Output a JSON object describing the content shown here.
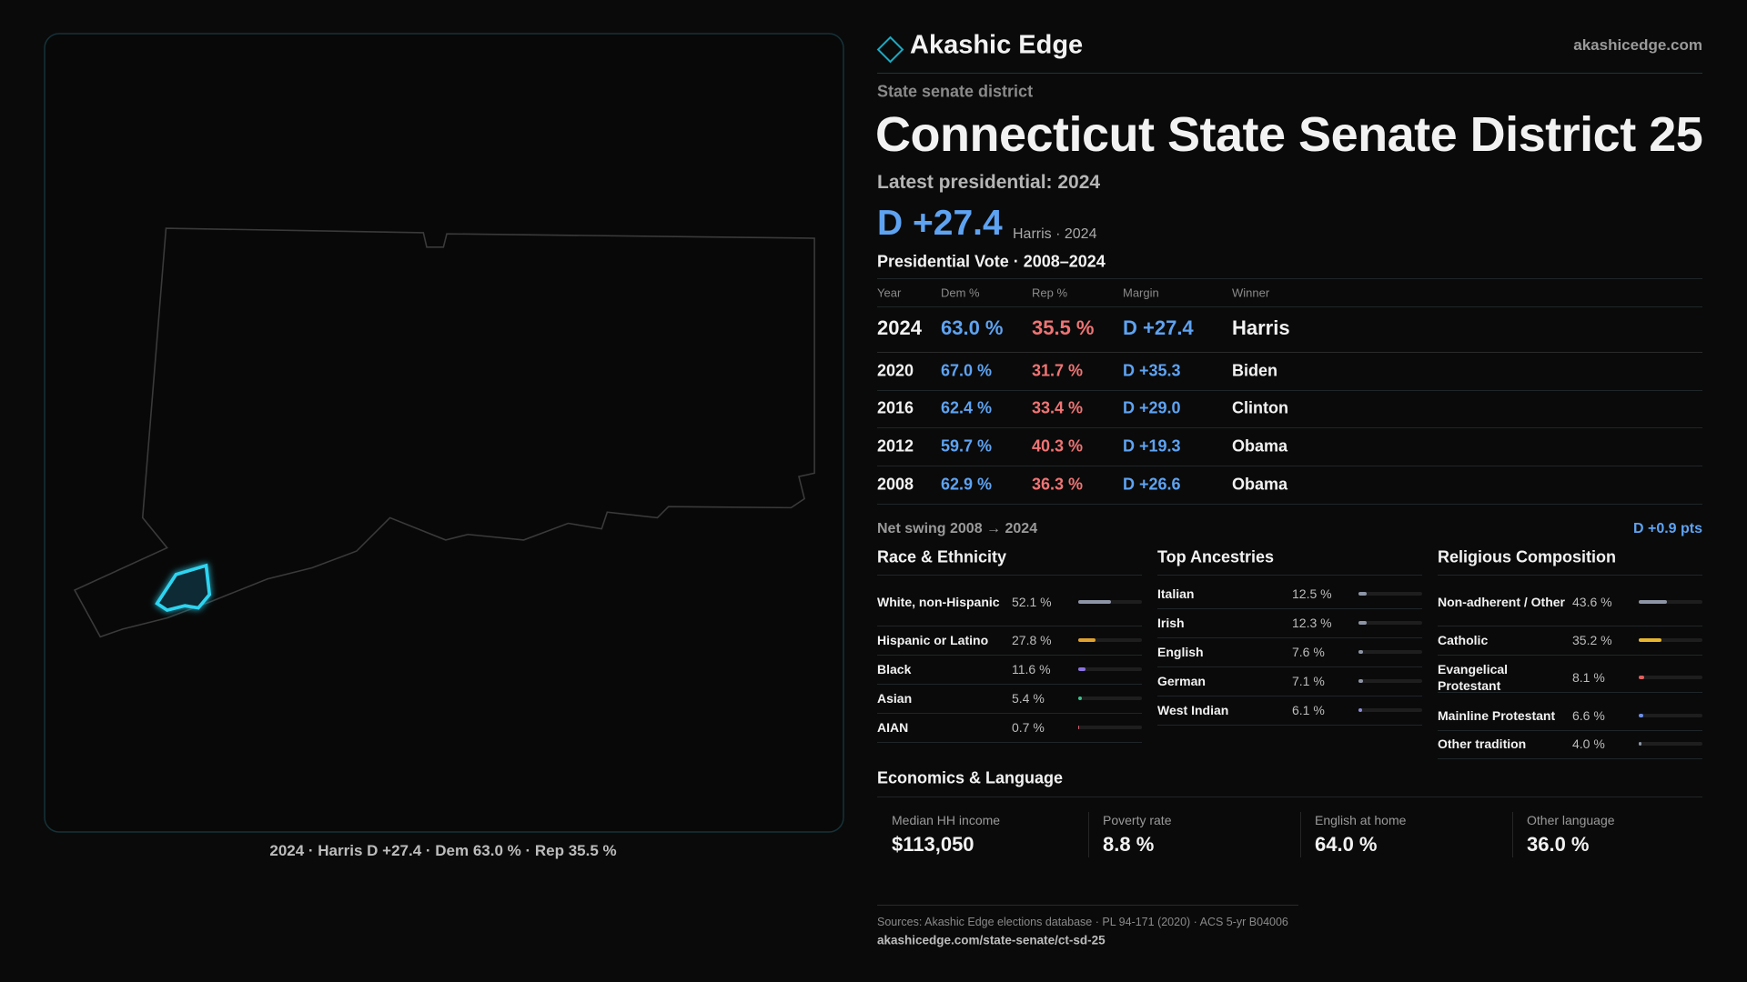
{
  "header": {
    "brand": "Akashic Edge",
    "site": "akashicedge.com"
  },
  "kicker": "State senate district",
  "title": "Connecticut State Senate District 25",
  "latest_label": "Latest presidential: 2024",
  "headline_margin": "D +27.4",
  "headline_note": "Harris · 2024",
  "vote_table": {
    "title": "Presidential Vote · 2008–2024",
    "columns": [
      "Year",
      "Dem %",
      "Rep %",
      "Margin",
      "Winner"
    ],
    "rows": [
      [
        "2024",
        "63.0 %",
        "35.5 %",
        "D +27.4",
        "Harris"
      ],
      [
        "2020",
        "67.0 %",
        "31.7 %",
        "D +35.3",
        "Biden"
      ],
      [
        "2016",
        "62.4 %",
        "33.4 %",
        "D +29.0",
        "Clinton"
      ],
      [
        "2012",
        "59.7 %",
        "40.3 %",
        "D +19.3",
        "Obama"
      ],
      [
        "2008",
        "62.9 %",
        "36.3 %",
        "D +26.6",
        "Obama"
      ]
    ]
  },
  "swing": {
    "label": "Net swing 2008 → 2024",
    "value": "D +0.9 pts"
  },
  "panels": [
    {
      "title": "Race & Ethnicity",
      "rows": [
        {
          "label": "White, non-Hispanic",
          "value": 52.1,
          "value_label": "52.1 %",
          "color": "#8d95a6"
        },
        {
          "label": "Hispanic or Latino",
          "value": 27.8,
          "value_label": "27.8 %",
          "color": "#e0a22e"
        },
        {
          "label": "Black",
          "value": 11.6,
          "value_label": "11.6 %",
          "color": "#8b72e0"
        },
        {
          "label": "Asian",
          "value": 5.4,
          "value_label": "5.4 %",
          "color": "#3cc08e"
        },
        {
          "label": "AIAN",
          "value": 0.7,
          "value_label": "0.7 %",
          "color": "#d06070"
        }
      ]
    },
    {
      "title": "Top Ancestries",
      "rows": [
        {
          "label": "Italian",
          "value": 12.5,
          "value_label": "12.5 %",
          "color": "#8d95a6"
        },
        {
          "label": "Irish",
          "value": 12.3,
          "value_label": "12.3 %",
          "color": "#8d95a6"
        },
        {
          "label": "English",
          "value": 7.6,
          "value_label": "7.6 %",
          "color": "#8d95a6"
        },
        {
          "label": "German",
          "value": 7.1,
          "value_label": "7.1 %",
          "color": "#8d95a6"
        },
        {
          "label": "West Indian",
          "value": 6.1,
          "value_label": "6.1 %",
          "color": "#8f8cd8"
        }
      ]
    },
    {
      "title": "Religious Composition",
      "rows": [
        {
          "label": "Non-adherent / Other",
          "value": 43.6,
          "value_label": "43.6 %",
          "color": "#8d95a6"
        },
        {
          "label": "Catholic",
          "value": 35.2,
          "value_label": "35.2 %",
          "color": "#e8b72e"
        },
        {
          "label": "Evangelical Protestant",
          "value": 8.1,
          "value_label": "8.1 %",
          "color": "#e06060"
        },
        {
          "label": "Mainline Protestant",
          "value": 6.6,
          "value_label": "6.6 %",
          "color": "#6a8ee8"
        },
        {
          "label": "Other tradition",
          "value": 4.0,
          "value_label": "4.0 %",
          "color": "#8d95a6"
        }
      ]
    }
  ],
  "economics": {
    "title": "Economics & Language",
    "cards": [
      {
        "label": "Median HH income",
        "value": "$113,050"
      },
      {
        "label": "Poverty rate",
        "value": "8.8 %"
      },
      {
        "label": "English at home",
        "value": "64.0 %"
      },
      {
        "label": "Other language",
        "value": "36.0 %"
      }
    ]
  },
  "sources": {
    "text": "Sources: Akashic Edge elections database · PL 94-171 (2020) · ACS 5-yr B04006",
    "url": "akashicedge.com/state-senate/ct-sd-25"
  },
  "map": {
    "caption": "2024 · Harris D +27.4 · Dem 63.0 % · Rep 35.5 %"
  }
}
